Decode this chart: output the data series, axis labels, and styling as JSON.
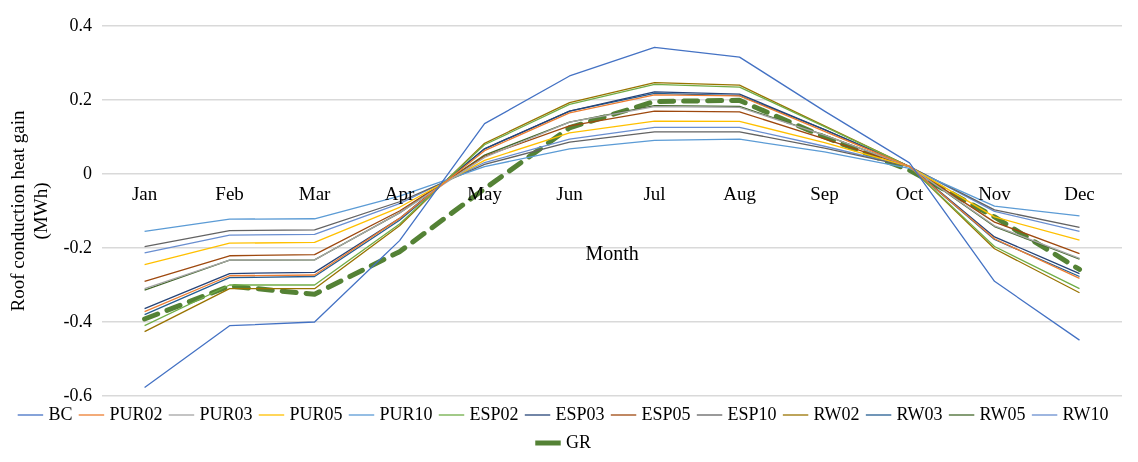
{
  "chart_data": {
    "type": "line",
    "xlabel": "Month",
    "ylabel": "Roof conduction heat gain (MWh)",
    "categories": [
      "Jan",
      "Feb",
      "Mar",
      "Apr",
      "May",
      "Jun",
      "Jul",
      "Aug",
      "Sep",
      "Oct",
      "Nov",
      "Dec"
    ],
    "ylim": [
      -0.6,
      0.4
    ],
    "yticks": [
      -0.6,
      -0.4,
      -0.2,
      0,
      0.2,
      0.4
    ],
    "grid": "y",
    "legend": "bottom",
    "marker": "none",
    "series": [
      {
        "name": "BC",
        "color": "#4472c4",
        "values": [
          -0.577,
          -0.41,
          -0.4,
          -0.18,
          0.136,
          0.265,
          0.342,
          0.316,
          0.17,
          0.03,
          -0.29,
          -0.449
        ]
      },
      {
        "name": "PUR02",
        "color": "#ed7d31",
        "values": [
          -0.372,
          -0.275,
          -0.273,
          -0.12,
          0.063,
          0.165,
          0.214,
          0.211,
          0.115,
          0.02,
          -0.175,
          -0.282
        ]
      },
      {
        "name": "PUR03",
        "color": "#a5a5a5",
        "values": [
          -0.31,
          -0.233,
          -0.232,
          -0.105,
          0.045,
          0.14,
          0.182,
          0.18,
          0.105,
          0.02,
          -0.14,
          -0.228
        ]
      },
      {
        "name": "PUR05",
        "color": "#ffc000",
        "values": [
          -0.245,
          -0.187,
          -0.185,
          -0.09,
          0.037,
          0.111,
          0.143,
          0.142,
          0.085,
          0.02,
          -0.116,
          -0.179
        ]
      },
      {
        "name": "PUR10",
        "color": "#5b9bd5",
        "values": [
          -0.155,
          -0.122,
          -0.121,
          -0.06,
          0.02,
          0.068,
          0.091,
          0.094,
          0.06,
          0.015,
          -0.087,
          -0.113
        ]
      },
      {
        "name": "ESP02",
        "color": "#70ad47",
        "values": [
          -0.41,
          -0.3,
          -0.3,
          -0.135,
          0.079,
          0.188,
          0.242,
          0.235,
          0.128,
          0.02,
          -0.196,
          -0.31
        ]
      },
      {
        "name": "ESP03",
        "color": "#264478",
        "values": [
          -0.364,
          -0.269,
          -0.266,
          -0.12,
          0.068,
          0.17,
          0.222,
          0.216,
          0.12,
          0.02,
          -0.17,
          -0.269
        ]
      },
      {
        "name": "ESP05",
        "color": "#9e480e",
        "values": [
          -0.29,
          -0.221,
          -0.218,
          -0.1,
          0.048,
          0.13,
          0.17,
          0.168,
          0.095,
          0.02,
          -0.13,
          -0.215
        ]
      },
      {
        "name": "ESP10",
        "color": "#636363",
        "values": [
          -0.196,
          -0.153,
          -0.151,
          -0.075,
          0.026,
          0.086,
          0.114,
          0.114,
          0.07,
          0.02,
          -0.097,
          -0.144
        ]
      },
      {
        "name": "RW02",
        "color": "#997300",
        "values": [
          -0.426,
          -0.31,
          -0.31,
          -0.14,
          0.083,
          0.193,
          0.247,
          0.24,
          0.13,
          0.02,
          -0.202,
          -0.321
        ]
      },
      {
        "name": "RW03",
        "color": "#255e91",
        "values": [
          -0.38,
          -0.28,
          -0.277,
          -0.125,
          0.068,
          0.17,
          0.218,
          0.212,
          0.12,
          0.02,
          -0.177,
          -0.277
        ]
      },
      {
        "name": "RW05",
        "color": "#43682b",
        "values": [
          -0.314,
          -0.233,
          -0.232,
          -0.105,
          0.051,
          0.14,
          0.185,
          0.183,
          0.105,
          0.02,
          -0.142,
          -0.23
        ]
      },
      {
        "name": "RW10",
        "color": "#698ed0",
        "values": [
          -0.213,
          -0.165,
          -0.163,
          -0.08,
          0.031,
          0.094,
          0.126,
          0.126,
          0.075,
          0.02,
          -0.101,
          -0.155
        ]
      },
      {
        "name": "GR",
        "color": "#548235",
        "line_style": "dashed",
        "values": [
          -0.392,
          -0.303,
          -0.325,
          -0.21,
          -0.04,
          0.125,
          0.196,
          0.199,
          0.1,
          0.01,
          -0.116,
          -0.258
        ]
      }
    ]
  }
}
